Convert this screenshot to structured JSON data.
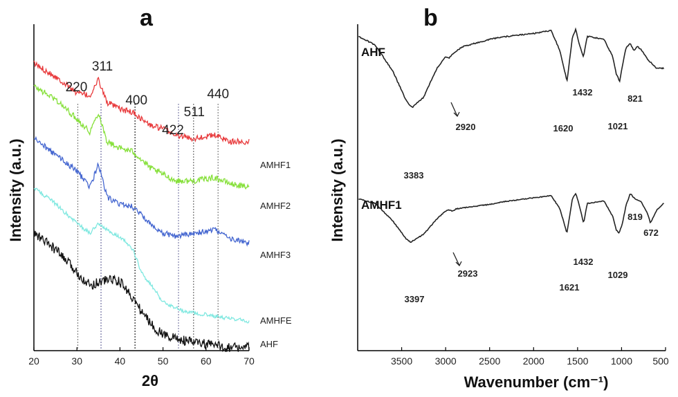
{
  "panel_a": {
    "label": "a",
    "ylabel": "Intensity (a.u.)",
    "xlabel": "2θ",
    "colors": {
      "AMHF1": "#e8393b",
      "AMHF2": "#86e03a",
      "AMHF3": "#4466d0",
      "AMHFE": "#7fe8e0",
      "AHF": "#111111",
      "axis": "#000000"
    }
  },
  "panel_b": {
    "label": "b",
    "ylabel": "Intensity (a.u.)",
    "xlabel": "Wavenumber (cm⁻¹)"
  },
  "chart_data": [
    {
      "type": "line",
      "title": "a",
      "xlabel": "2θ",
      "ylabel": "Intensity (a.u.)",
      "xlim": [
        20,
        70
      ],
      "xticks": [
        "20",
        "30",
        "40",
        "50",
        "60",
        "70"
      ],
      "grid": false,
      "series": [
        {
          "name": "AMHF1",
          "color": "#e8393b",
          "x": [
            20,
            25,
            30,
            33,
            35,
            37,
            40,
            43,
            47,
            50,
            53,
            57,
            62,
            66,
            70
          ],
          "y": [
            0.88,
            0.84,
            0.79,
            0.78,
            0.83,
            0.76,
            0.74,
            0.73,
            0.69,
            0.68,
            0.66,
            0.65,
            0.66,
            0.64,
            0.64
          ]
        },
        {
          "name": "AMHF2",
          "color": "#86e03a",
          "x": [
            20,
            25,
            30,
            33,
            35,
            37,
            40,
            43,
            47,
            50,
            53,
            57,
            62,
            66,
            70
          ],
          "y": [
            0.81,
            0.77,
            0.71,
            0.67,
            0.73,
            0.64,
            0.62,
            0.61,
            0.56,
            0.54,
            0.52,
            0.52,
            0.53,
            0.51,
            0.5
          ]
        },
        {
          "name": "AMHF3",
          "color": "#4466d0",
          "x": [
            20,
            25,
            30,
            33,
            35,
            37,
            40,
            43,
            47,
            50,
            53,
            57,
            62,
            66,
            70
          ],
          "y": [
            0.65,
            0.6,
            0.55,
            0.5,
            0.57,
            0.47,
            0.45,
            0.44,
            0.39,
            0.36,
            0.35,
            0.36,
            0.37,
            0.34,
            0.33
          ]
        },
        {
          "name": "AMHFE",
          "color": "#7fe8e0",
          "x": [
            20,
            25,
            30,
            33,
            35,
            38,
            40,
            43,
            45,
            50,
            55,
            60,
            65,
            70
          ],
          "y": [
            0.5,
            0.45,
            0.39,
            0.36,
            0.39,
            0.36,
            0.35,
            0.31,
            0.24,
            0.15,
            0.12,
            0.11,
            0.1,
            0.09
          ]
        },
        {
          "name": "AHF",
          "color": "#111111",
          "x": [
            20,
            25,
            30,
            33,
            35,
            38,
            40,
            42,
            45,
            48,
            50,
            55,
            60,
            65,
            70
          ],
          "y": [
            0.36,
            0.31,
            0.24,
            0.2,
            0.21,
            0.22,
            0.21,
            0.18,
            0.12,
            0.07,
            0.05,
            0.03,
            0.02,
            0.01,
            0.01
          ]
        }
      ],
      "annotations": [
        {
          "label": "220",
          "x": 30.2
        },
        {
          "label": "311",
          "x": 35.6
        },
        {
          "label": "400",
          "x": 43.5
        },
        {
          "label": "422",
          "x": 53.6
        },
        {
          "label": "511",
          "x": 57.1
        },
        {
          "label": "440",
          "x": 62.8
        }
      ]
    },
    {
      "type": "line",
      "title": "b",
      "xlabel": "Wavenumber (cm⁻¹)",
      "ylabel": "Intensity (a.u.)",
      "xlim": [
        4000,
        500
      ],
      "xticks": [
        "3500",
        "3000",
        "2500",
        "2000",
        "1500",
        "1000",
        "500"
      ],
      "grid": false,
      "series": [
        {
          "name": "AHF",
          "color": "#222222",
          "x": [
            3990,
            3800,
            3600,
            3450,
            3383,
            3250,
            3100,
            3000,
            2960,
            2920,
            2880,
            2800,
            2500,
            2300,
            2000,
            1800,
            1700,
            1620,
            1560,
            1520,
            1480,
            1432,
            1390,
            1300,
            1200,
            1100,
            1060,
            1021,
            990,
            950,
            900,
            860,
            821,
            780,
            700,
            600,
            520
          ],
          "y": [
            0.94,
            0.88,
            0.7,
            0.5,
            0.45,
            0.52,
            0.72,
            0.8,
            0.79,
            0.82,
            0.84,
            0.87,
            0.92,
            0.94,
            0.96,
            0.98,
            0.84,
            0.63,
            0.93,
            0.99,
            0.88,
            0.8,
            0.94,
            0.93,
            0.92,
            0.8,
            0.68,
            0.63,
            0.74,
            0.86,
            0.89,
            0.84,
            0.87,
            0.85,
            0.78,
            0.72,
            0.72
          ]
        },
        {
          "name": "AMHF1",
          "color": "#222222",
          "x": [
            3990,
            3800,
            3600,
            3450,
            3397,
            3250,
            3100,
            3000,
            2960,
            2923,
            2880,
            2800,
            2500,
            2300,
            2000,
            1800,
            1700,
            1621,
            1560,
            1520,
            1480,
            1432,
            1390,
            1300,
            1200,
            1100,
            1060,
            1029,
            990,
            950,
            900,
            860,
            819,
            780,
            700,
            672,
            600,
            520
          ],
          "y": [
            0.94,
            0.9,
            0.74,
            0.58,
            0.55,
            0.62,
            0.76,
            0.83,
            0.84,
            0.83,
            0.85,
            0.86,
            0.89,
            0.92,
            0.95,
            0.97,
            0.85,
            0.63,
            0.94,
            0.99,
            0.88,
            0.72,
            0.9,
            0.91,
            0.92,
            0.78,
            0.66,
            0.63,
            0.72,
            0.88,
            0.99,
            0.95,
            0.93,
            0.92,
            0.8,
            0.72,
            0.84,
            0.9
          ]
        }
      ],
      "annotations": [
        {
          "label": "3383",
          "series": "AHF"
        },
        {
          "label": "2920",
          "series": "AHF"
        },
        {
          "label": "1620",
          "series": "AHF"
        },
        {
          "label": "1432",
          "series": "AHF"
        },
        {
          "label": "1021",
          "series": "AHF"
        },
        {
          "label": "821",
          "series": "AHF"
        },
        {
          "label": "3397",
          "series": "AMHF1"
        },
        {
          "label": "2923",
          "series": "AMHF1"
        },
        {
          "label": "1621",
          "series": "AMHF1"
        },
        {
          "label": "1432",
          "series": "AMHF1"
        },
        {
          "label": "1029",
          "series": "AMHF1"
        },
        {
          "label": "819",
          "series": "AMHF1"
        },
        {
          "label": "672",
          "series": "AMHF1"
        }
      ]
    }
  ]
}
